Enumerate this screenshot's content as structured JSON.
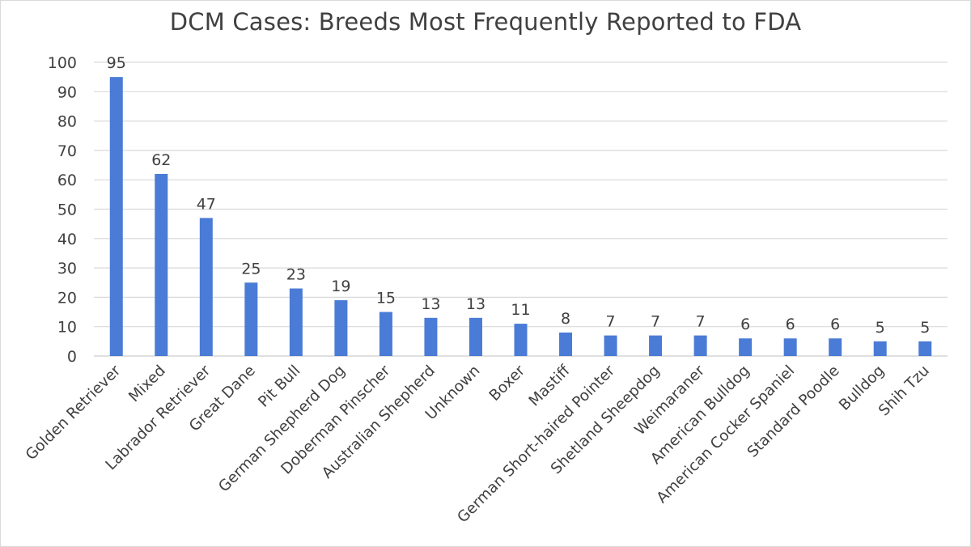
{
  "chart_data": {
    "type": "bar",
    "title": "DCM Cases: Breeds Most Frequently Reported to FDA",
    "xlabel": "",
    "ylabel": "",
    "ylim": [
      0,
      100
    ],
    "yticks": [
      "0",
      "10",
      "20",
      "30",
      "40",
      "50",
      "60",
      "70",
      "80",
      "90",
      "100"
    ],
    "grid": true,
    "legend": "none",
    "bar_color": "#4a7bd6",
    "categories": [
      "Golden Retriever",
      "Mixed",
      "Labrador Retriever",
      "Great Dane",
      "Pit Bull",
      "German Shepherd Dog",
      "Doberman Pinscher",
      "Australian Shepherd",
      "Unknown",
      "Boxer",
      "Mastiff",
      "German Short-haired Pointer",
      "Shetland Sheepdog",
      "Weimaraner",
      "American Bulldog",
      "American Cocker Spaniel",
      "Standard Poodle",
      "Bulldog",
      "Shih Tzu"
    ],
    "values": [
      95,
      62,
      47,
      25,
      23,
      19,
      15,
      13,
      13,
      11,
      8,
      7,
      7,
      7,
      6,
      6,
      6,
      5,
      5
    ]
  }
}
